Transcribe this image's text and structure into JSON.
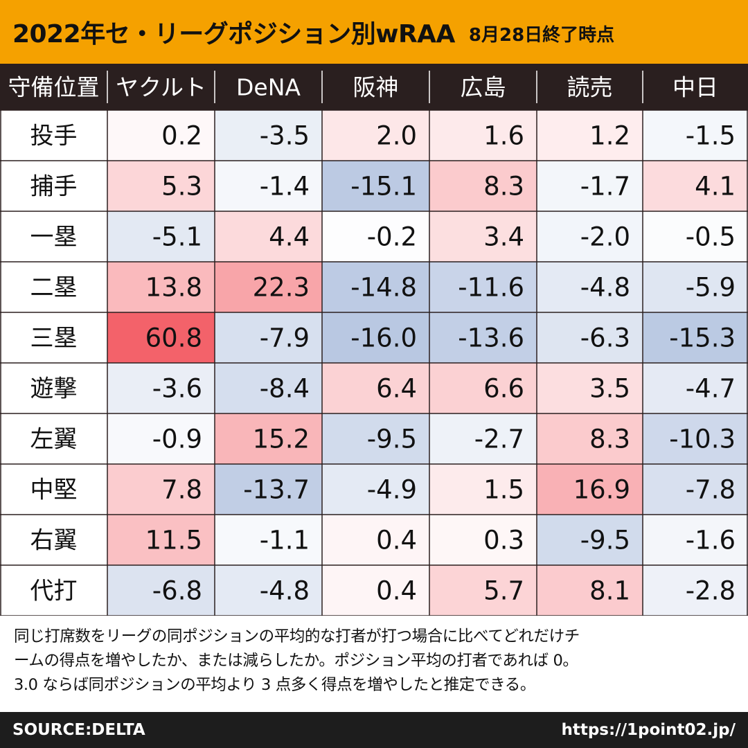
{
  "title": {
    "main": "2022年セ・リーグポジション別wRAA",
    "sub": "8月28日終了時点"
  },
  "chart_data": {
    "type": "heatmap",
    "title": "2022年セ・リーグポジション別wRAA",
    "subtitle": "8月28日終了時点",
    "corner_label": "守備位置",
    "columns": [
      "ヤクルト",
      "DeNA",
      "阪神",
      "広島",
      "読売",
      "中日"
    ],
    "rows": [
      "投手",
      "捕手",
      "一塁",
      "二塁",
      "三塁",
      "遊撃",
      "左翼",
      "中堅",
      "右翼",
      "代打"
    ],
    "values": [
      [
        0.2,
        -3.5,
        2.0,
        1.6,
        1.2,
        -1.5
      ],
      [
        5.3,
        -1.4,
        -15.1,
        8.3,
        -1.7,
        4.1
      ],
      [
        -5.1,
        4.4,
        -0.2,
        3.4,
        -2.0,
        -0.5
      ],
      [
        13.8,
        22.3,
        -14.8,
        -11.6,
        -4.8,
        -5.9
      ],
      [
        60.8,
        -7.9,
        -16.0,
        -13.6,
        -6.3,
        -15.3
      ],
      [
        -3.6,
        -8.4,
        6.4,
        6.6,
        3.5,
        -4.7
      ],
      [
        -0.9,
        15.2,
        -9.5,
        -2.7,
        8.3,
        -10.3
      ],
      [
        7.8,
        -13.7,
        -4.9,
        1.5,
        16.9,
        -7.8
      ],
      [
        11.5,
        -1.1,
        0.4,
        0.3,
        -9.5,
        -1.6
      ],
      [
        -6.8,
        -4.8,
        0.4,
        5.7,
        8.1,
        -2.8
      ]
    ],
    "colors": {
      "positive": "#f25a62",
      "negative": "#b9c8e2",
      "header_bg": "#2a1f1f",
      "header_text": "#ffffff",
      "grid": "#2a1f1f"
    }
  },
  "note": {
    "line1": "同じ打席数をリーグの同ポジションの平均的な打者が打つ場合に比べてどれだけチ",
    "line2": "ームの得点を増やしたか、または減らしたか。ポジション平均の打者であれば 0。",
    "line3": "3.0 ならば同ポジションの平均より 3 点多く得点を増やしたと推定できる。"
  },
  "footer": {
    "source": "SOURCE:DELTA",
    "url": "https://1point02.jp/"
  },
  "colors": {
    "title_bar": "#f5a100",
    "footer_bg": "#1d1d1d"
  }
}
